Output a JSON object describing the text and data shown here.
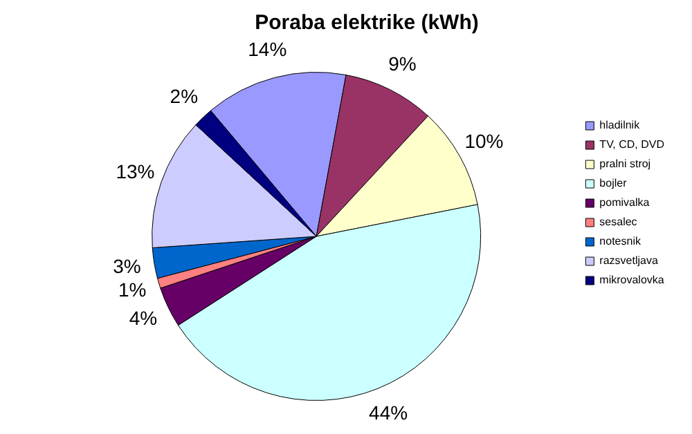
{
  "chart_data": {
    "type": "pie",
    "title": "Poraba elektrike (kWh)",
    "categories": [
      "hladilnik",
      "TV, CD, DVD",
      "pralni stroj",
      "bojler",
      "pomivalka",
      "sesalec",
      "notesnik",
      "razsvetljava",
      "mikrovalovka"
    ],
    "values": [
      14,
      9,
      10,
      44,
      4,
      1,
      3,
      13,
      2
    ],
    "colors": [
      "#9999ff",
      "#993366",
      "#ffffcc",
      "#ccffff",
      "#660066",
      "#ff8080",
      "#0066cc",
      "#ccccff",
      "#000080"
    ],
    "value_labels": [
      "14%",
      "9%",
      "10%",
      "44%",
      "4%",
      "1%",
      "3%",
      "13%",
      "2%"
    ],
    "legend": "right"
  }
}
